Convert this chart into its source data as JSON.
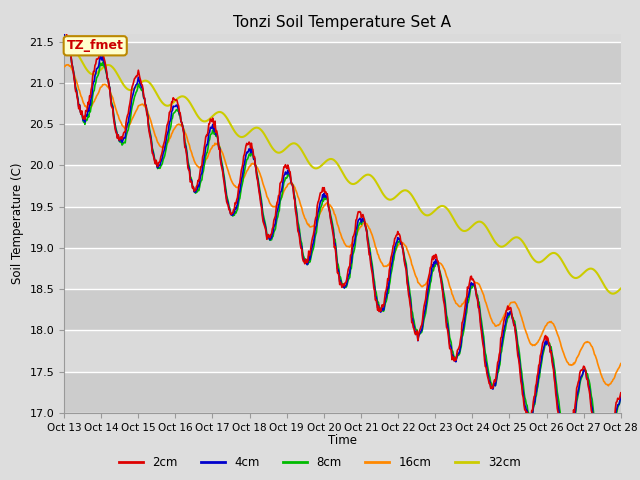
{
  "title": "Tonzi Soil Temperature Set A",
  "xlabel": "Time",
  "ylabel": "Soil Temperature (C)",
  "ylim": [
    17.0,
    21.6
  ],
  "annotation_text": "TZ_fmet",
  "annotation_color": "#cc0000",
  "annotation_bg": "#ffffcc",
  "annotation_border": "#bb8800",
  "legend_labels": [
    "2cm",
    "4cm",
    "8cm",
    "16cm",
    "32cm"
  ],
  "line_colors": [
    "#dd0000",
    "#0000cc",
    "#00bb00",
    "#ff8800",
    "#cccc00"
  ],
  "line_widths": [
    1.2,
    1.2,
    1.2,
    1.2,
    1.5
  ],
  "xtick_labels": [
    "Oct 13",
    "Oct 14",
    "Oct 15",
    "Oct 16",
    "Oct 17",
    "Oct 18",
    "Oct 19",
    "Oct 20",
    "Oct 21",
    "Oct 22",
    "Oct 23",
    "Oct 24",
    "Oct 25",
    "Oct 26",
    "Oct 27",
    "Oct 28"
  ],
  "num_points": 720,
  "days": 15
}
